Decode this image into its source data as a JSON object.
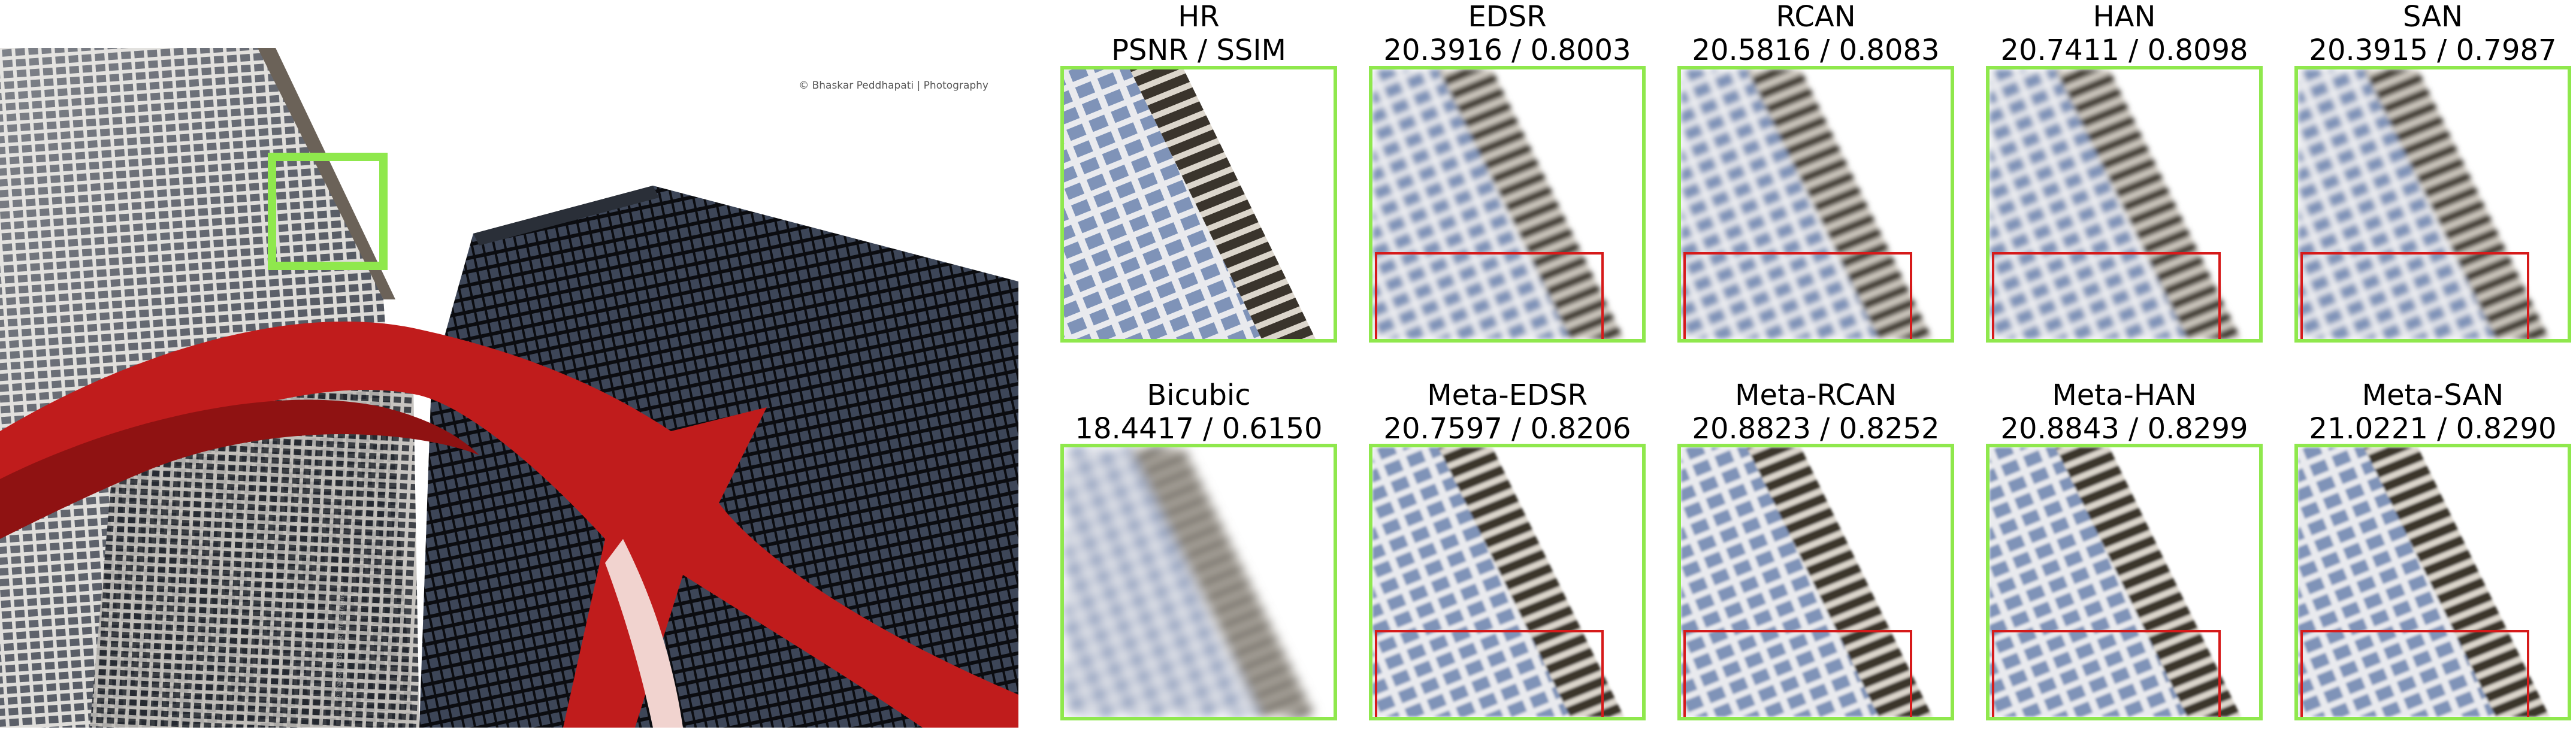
{
  "photo": {
    "credit": "© Bhaskar Peddhapati | Photography",
    "watermark": "© Bhaskar Peddhapati Photography"
  },
  "colors": {
    "highlight_box": "#8fe84d",
    "inset_box": "#d61a1a",
    "sculpture_red": "#c01c1c",
    "sky": "#ffffff"
  },
  "panels": [
    {
      "method": "HR",
      "metric": "PSNR / SSIM",
      "quality": "sharp",
      "inset": false
    },
    {
      "method": "EDSR",
      "metric": "20.3916 / 0.8003",
      "quality": "blurred",
      "inset": true
    },
    {
      "method": "RCAN",
      "metric": "20.5816 / 0.8083",
      "quality": "blurred",
      "inset": true
    },
    {
      "method": "HAN",
      "metric": "20.7411 / 0.8098",
      "quality": "blurred",
      "inset": true
    },
    {
      "method": "SAN",
      "metric": "20.3915 / 0.7987",
      "quality": "blurred",
      "inset": true
    },
    {
      "method": "Bicubic",
      "metric": "18.4417 / 0.6150",
      "quality": "very-blurred",
      "inset": false
    },
    {
      "method": "Meta-EDSR",
      "metric": "20.7597 / 0.8206",
      "quality": "sharper",
      "inset": true
    },
    {
      "method": "Meta-RCAN",
      "metric": "20.8823 / 0.8252",
      "quality": "sharper",
      "inset": true
    },
    {
      "method": "Meta-HAN",
      "metric": "20.8843 / 0.8299",
      "quality": "sharper",
      "inset": true
    },
    {
      "method": "Meta-SAN",
      "metric": "21.0221 / 0.8290",
      "quality": "sharper",
      "inset": true
    }
  ]
}
